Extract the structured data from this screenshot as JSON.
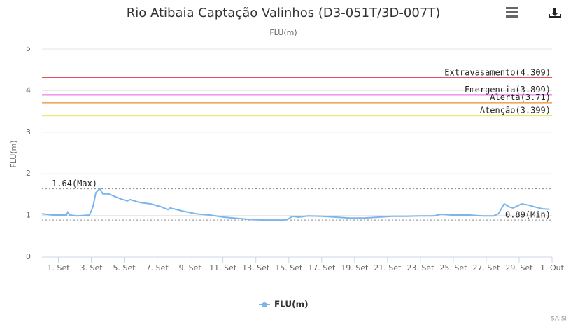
{
  "chart_data": {
    "type": "line",
    "title": "Rio Atibaia Captação Valinhos (D3-051T/3D-007T)",
    "subtitle": "FLU(m)",
    "y_label": "FLU(m)",
    "credit": "SAISP",
    "xlim": [
      0,
      31
    ],
    "xticks": [
      {
        "value": 1,
        "label": "1. Set"
      },
      {
        "value": 3,
        "label": "3. Set"
      },
      {
        "value": 5,
        "label": "5. Set"
      },
      {
        "value": 7,
        "label": "7. Set"
      },
      {
        "value": 9,
        "label": "9. Set"
      },
      {
        "value": 11,
        "label": "11. Set"
      },
      {
        "value": 13,
        "label": "13. Set"
      },
      {
        "value": 15,
        "label": "15. Set"
      },
      {
        "value": 17,
        "label": "17. Set"
      },
      {
        "value": 19,
        "label": "19. Set"
      },
      {
        "value": 21,
        "label": "21. Set"
      },
      {
        "value": 23,
        "label": "23. Set"
      },
      {
        "value": 25,
        "label": "25. Set"
      },
      {
        "value": 27,
        "label": "27. Set"
      },
      {
        "value": 29,
        "label": "29. Set"
      },
      {
        "value": 31,
        "label": "1. Out"
      }
    ],
    "ylim": [
      0,
      5
    ],
    "yticks": [
      0,
      1,
      2,
      3,
      4,
      5
    ],
    "grid": true,
    "legend": "bottom",
    "plot_lines": [
      {
        "value": 4.309,
        "label": "Extravasamento(4.309)",
        "color": "#e8505b",
        "dash": false
      },
      {
        "value": 3.899,
        "label": "Emergencia(3.899)",
        "color": "#e85de8",
        "dash": false
      },
      {
        "value": 3.71,
        "label": "Alerta(3.71)",
        "color": "#f5a55a",
        "dash": false
      },
      {
        "value": 3.399,
        "label": "Atenção(3.399)",
        "color": "#e6e65a",
        "dash": false
      },
      {
        "value": 1.64,
        "label": "1.64(Max)",
        "color": "#888888",
        "dash": true
      },
      {
        "value": 0.89,
        "label": "0.89(Min)",
        "color": "#888888",
        "dash": true
      }
    ],
    "x": [
      0,
      0.64,
      1.49,
      1.57,
      1.7,
      2.13,
      2.89,
      3.1,
      3.28,
      3.4,
      3.53,
      3.7,
      4.04,
      4.47,
      4.77,
      5.19,
      5.36,
      5.96,
      6.6,
      7.23,
      7.66,
      7.79,
      8.51,
      9.36,
      10.2,
      11.06,
      11.9,
      12.77,
      13.6,
      14.68,
      14.9,
      15.23,
      15.57,
      16.17,
      17.02,
      17.87,
      18.72,
      19.57,
      20.43,
      21.28,
      22.13,
      22.98,
      23.83,
      24.26,
      24.89,
      25.96,
      26.81,
      27.45,
      27.74,
      28.09,
      28.43,
      28.64,
      29.15,
      29.57,
      30.0,
      30.43,
      30.85
    ],
    "series": [
      {
        "name": "FLU(m)",
        "color": "#7cb5ec",
        "values": [
          1.04,
          1.01,
          1.01,
          1.08,
          1.01,
          0.99,
          1.01,
          1.21,
          1.55,
          1.6,
          1.64,
          1.52,
          1.52,
          1.45,
          1.4,
          1.35,
          1.38,
          1.31,
          1.28,
          1.21,
          1.14,
          1.18,
          1.11,
          1.04,
          1.01,
          0.96,
          0.93,
          0.9,
          0.89,
          0.89,
          0.9,
          0.98,
          0.96,
          0.99,
          0.98,
          0.96,
          0.94,
          0.94,
          0.96,
          0.98,
          0.98,
          0.99,
          0.99,
          1.03,
          1.01,
          1.01,
          0.99,
          0.99,
          1.04,
          1.28,
          1.2,
          1.18,
          1.28,
          1.25,
          1.2,
          1.16,
          1.15
        ]
      }
    ]
  }
}
